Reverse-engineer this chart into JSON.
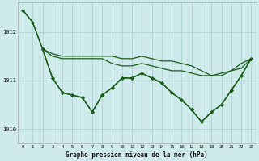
{
  "title": "Graphe pression niveau de la mer (hPa)",
  "bg_color": "#ceeaea",
  "grid_color": "#aacccc",
  "line_color": "#1a5c1a",
  "marker_color": "#1a5c1a",
  "xlim": [
    -0.5,
    23.5
  ],
  "ylim": [
    1009.7,
    1012.6
  ],
  "yticks": [
    1010,
    1011,
    1012
  ],
  "xticks": [
    0,
    1,
    2,
    3,
    4,
    5,
    6,
    7,
    8,
    9,
    10,
    11,
    12,
    13,
    14,
    15,
    16,
    17,
    18,
    19,
    20,
    21,
    22,
    23
  ],
  "series": [
    {
      "x": [
        0,
        1,
        2,
        3,
        4,
        5,
        6,
        7,
        8,
        9,
        10,
        11,
        12,
        13,
        14,
        15,
        16,
        17,
        18,
        19,
        20,
        21,
        22,
        23
      ],
      "y": [
        1012.45,
        1012.2,
        1011.65,
        1011.05,
        1010.75,
        1010.7,
        1010.65,
        1010.35,
        1010.7,
        1010.85,
        1011.05,
        1011.05,
        1011.15,
        1011.05,
        1010.95,
        1010.75,
        1010.6,
        1010.4,
        1010.15,
        1010.35,
        1010.5,
        1010.8,
        1011.1,
        1011.45
      ],
      "marker": "D",
      "markersize": 2.0,
      "linewidth": 1.0
    },
    {
      "x": [
        0,
        1,
        2,
        3,
        4,
        5,
        6,
        7,
        8,
        9,
        10,
        11,
        12,
        13,
        14,
        15,
        16,
        17,
        18,
        19,
        20,
        21,
        22,
        23
      ],
      "y": [
        1012.45,
        1012.2,
        1011.65,
        1011.5,
        1011.45,
        1011.45,
        1011.45,
        1011.45,
        1011.45,
        1011.35,
        1011.3,
        1011.3,
        1011.35,
        1011.3,
        1011.25,
        1011.2,
        1011.2,
        1011.15,
        1011.1,
        1011.1,
        1011.15,
        1011.2,
        1011.25,
        1011.45
      ],
      "marker": null,
      "markersize": 0,
      "linewidth": 0.9
    },
    {
      "x": [
        2,
        3,
        4,
        5,
        6,
        7,
        8,
        9,
        10,
        11,
        12,
        13,
        14,
        15,
        16,
        17,
        18,
        19,
        20,
        21,
        22,
        23
      ],
      "y": [
        1011.65,
        1011.55,
        1011.5,
        1011.5,
        1011.5,
        1011.5,
        1011.5,
        1011.5,
        1011.45,
        1011.45,
        1011.5,
        1011.45,
        1011.4,
        1011.4,
        1011.35,
        1011.3,
        1011.2,
        1011.1,
        1011.1,
        1011.2,
        1011.35,
        1011.45
      ],
      "marker": null,
      "markersize": 0,
      "linewidth": 0.9
    },
    {
      "x": [
        2,
        3,
        4,
        5,
        6,
        7,
        8,
        9,
        10,
        11,
        12,
        13,
        14,
        15,
        16,
        17,
        18,
        19,
        20,
        21,
        22,
        23
      ],
      "y": [
        1011.65,
        1011.05,
        1010.75,
        1010.7,
        1010.65,
        1010.35,
        1010.7,
        1010.85,
        1011.05,
        1011.05,
        1011.15,
        1011.05,
        1010.95,
        1010.75,
        1010.6,
        1010.4,
        1010.15,
        1010.35,
        1010.5,
        1010.8,
        1011.1,
        1011.45
      ],
      "marker": "D",
      "markersize": 2.0,
      "linewidth": 1.0
    }
  ]
}
